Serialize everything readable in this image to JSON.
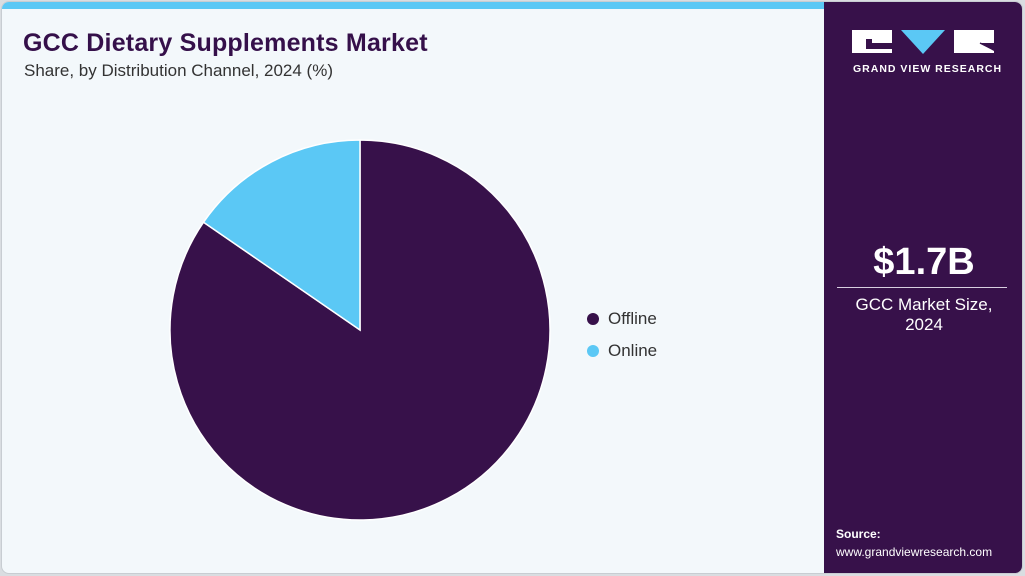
{
  "header": {
    "title": "GCC Dietary Supplements Market",
    "subtitle": "Share, by Distribution Channel, 2024 (%)"
  },
  "legend": {
    "items": [
      {
        "label": "Offline",
        "color": "#37114a"
      },
      {
        "label": "Online",
        "color": "#5bc8f5"
      }
    ]
  },
  "sidebar": {
    "brand": "GRAND VIEW RESEARCH",
    "kpi_value": "$1.7B",
    "kpi_label_line1": "GCC Market Size,",
    "kpi_label_line2": "2024",
    "source_label": "Source:",
    "source_url": "www.grandviewresearch.com"
  },
  "colors": {
    "brand_dark": "#37114a",
    "accent": "#5bc8f5",
    "background": "#f3f8fb"
  },
  "chart_data": {
    "type": "pie",
    "title": "GCC Dietary Supplements Market",
    "subtitle": "Share, by Distribution Channel, 2024 (%)",
    "categories": [
      "Offline",
      "Online"
    ],
    "values": [
      84.6,
      15.4
    ],
    "colors": [
      "#37114a",
      "#5bc8f5"
    ],
    "start_angle": "12 o'clock, Online slice counterclockwise",
    "legend_position": "right",
    "data_labels": false
  }
}
